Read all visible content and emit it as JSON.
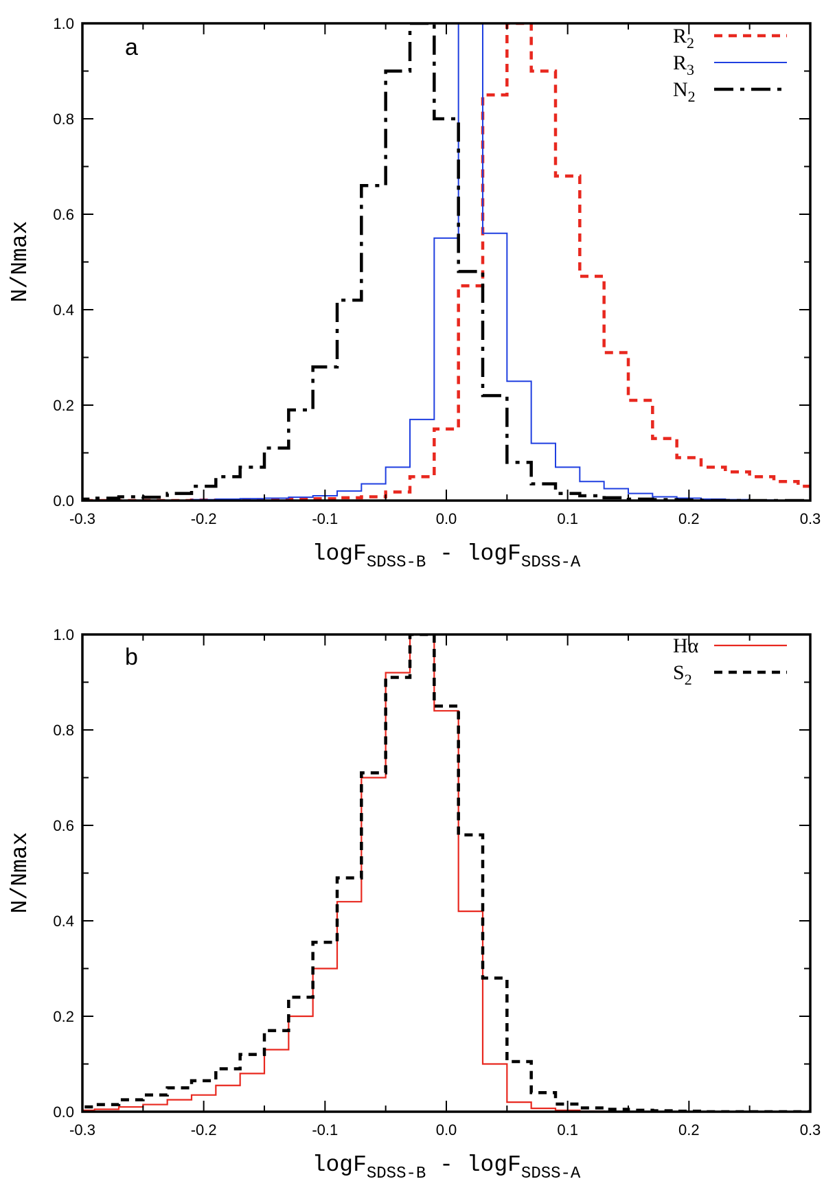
{
  "chart_data": [
    {
      "type": "step",
      "panel": "a",
      "xlabel": {
        "main": "logF",
        "sub1": "SDSS-B",
        "mid": " - logF",
        "sub2": "SDSS-A"
      },
      "ylabel": "N/Nmax",
      "xlim": [
        -0.3,
        0.3
      ],
      "ylim": [
        0.0,
        1.0
      ],
      "xticks": [
        -0.3,
        -0.2,
        -0.1,
        0.0,
        0.1,
        0.2,
        0.3
      ],
      "xtick_labels": [
        "-0.3",
        "-0.2",
        "-0.1",
        "0.0",
        "0.1",
        "0.2",
        "0.3"
      ],
      "yticks": [
        0.0,
        0.2,
        0.4,
        0.6,
        0.8,
        1.0
      ],
      "ytick_labels": [
        "0.0",
        "0.2",
        "0.4",
        "0.6",
        "0.8",
        "1.0"
      ],
      "bin_edges": [
        -0.31,
        -0.29,
        -0.27,
        -0.25,
        -0.23,
        -0.21,
        -0.19,
        -0.17,
        -0.15,
        -0.13,
        -0.11,
        -0.09,
        -0.07,
        -0.05,
        -0.03,
        -0.01,
        0.01,
        0.03,
        0.05,
        0.07,
        0.09,
        0.11,
        0.13,
        0.15,
        0.17,
        0.19,
        0.21,
        0.23,
        0.25,
        0.27,
        0.29,
        0.31
      ],
      "legend_position": "top-right",
      "series": [
        {
          "name": "R",
          "sub": "2",
          "color": "#e8281f",
          "style": "dashed-thick",
          "values": [
            0.0,
            0.0,
            0.0,
            0.0,
            0.0,
            0.001,
            0.001,
            0.002,
            0.002,
            0.003,
            0.004,
            0.006,
            0.008,
            0.018,
            0.05,
            0.15,
            0.45,
            0.85,
            1.0,
            0.9,
            0.68,
            0.47,
            0.31,
            0.21,
            0.13,
            0.09,
            0.07,
            0.06,
            0.05,
            0.04,
            0.03
          ]
        },
        {
          "name": "R",
          "sub": "3",
          "color": "#1f3fe0",
          "style": "solid-thin",
          "values": [
            0.0,
            0.0,
            0.0,
            0.0,
            0.0,
            0.002,
            0.003,
            0.004,
            0.005,
            0.007,
            0.01,
            0.02,
            0.035,
            0.07,
            0.17,
            0.55,
            1.0,
            0.56,
            0.25,
            0.12,
            0.07,
            0.04,
            0.025,
            0.015,
            0.008,
            0.005,
            0.003,
            0.002,
            0.001,
            0.0,
            0.0
          ]
        },
        {
          "name": "N",
          "sub": "2",
          "color": "#000000",
          "style": "dashdot-thick",
          "values": [
            0.003,
            0.005,
            0.008,
            0.007,
            0.015,
            0.03,
            0.05,
            0.07,
            0.11,
            0.19,
            0.28,
            0.42,
            0.66,
            0.9,
            1.0,
            0.8,
            0.48,
            0.22,
            0.08,
            0.035,
            0.015,
            0.01,
            0.006,
            0.003,
            0.002,
            0.001,
            0.0,
            0.0,
            0.0,
            0.0,
            0.0
          ]
        }
      ]
    },
    {
      "type": "step",
      "panel": "b",
      "xlabel": {
        "main": "logF",
        "sub1": "SDSS-B",
        "mid": " - logF",
        "sub2": "SDSS-A"
      },
      "ylabel": "N/Nmax",
      "xlim": [
        -0.3,
        0.3
      ],
      "ylim": [
        0.0,
        1.0
      ],
      "xticks": [
        -0.3,
        -0.2,
        -0.1,
        0.0,
        0.1,
        0.2,
        0.3
      ],
      "xtick_labels": [
        "-0.3",
        "-0.2",
        "-0.1",
        "0.0",
        "0.1",
        "0.2",
        "0.3"
      ],
      "yticks": [
        0.0,
        0.2,
        0.4,
        0.6,
        0.8,
        1.0
      ],
      "ytick_labels": [
        "0.0",
        "0.2",
        "0.4",
        "0.6",
        "0.8",
        "1.0"
      ],
      "bin_edges": [
        -0.31,
        -0.29,
        -0.27,
        -0.25,
        -0.23,
        -0.21,
        -0.19,
        -0.17,
        -0.15,
        -0.13,
        -0.11,
        -0.09,
        -0.07,
        -0.05,
        -0.03,
        -0.01,
        0.01,
        0.03,
        0.05,
        0.07,
        0.09,
        0.11,
        0.13,
        0.15,
        0.17,
        0.19,
        0.21,
        0.23,
        0.25,
        0.27,
        0.29,
        0.31
      ],
      "legend_position": "top-right",
      "series": [
        {
          "name": "Hα",
          "sub": "",
          "color": "#e8281f",
          "style": "solid",
          "values": [
            0.003,
            0.005,
            0.01,
            0.015,
            0.025,
            0.035,
            0.055,
            0.08,
            0.13,
            0.2,
            0.3,
            0.44,
            0.7,
            0.92,
            1.0,
            0.84,
            0.42,
            0.1,
            0.02,
            0.007,
            0.003,
            0.001,
            0.0,
            0.0,
            0.0,
            0.0,
            0.0,
            0.0,
            0.0,
            0.0,
            0.0
          ]
        },
        {
          "name": "S",
          "sub": "2",
          "color": "#000000",
          "style": "dashed-thick",
          "values": [
            0.01,
            0.015,
            0.025,
            0.035,
            0.05,
            0.065,
            0.09,
            0.12,
            0.17,
            0.24,
            0.355,
            0.49,
            0.71,
            0.91,
            1.0,
            0.85,
            0.58,
            0.28,
            0.105,
            0.04,
            0.016,
            0.008,
            0.005,
            0.003,
            0.002,
            0.001,
            0.0,
            0.0,
            0.0,
            0.0,
            0.0
          ]
        }
      ]
    }
  ]
}
